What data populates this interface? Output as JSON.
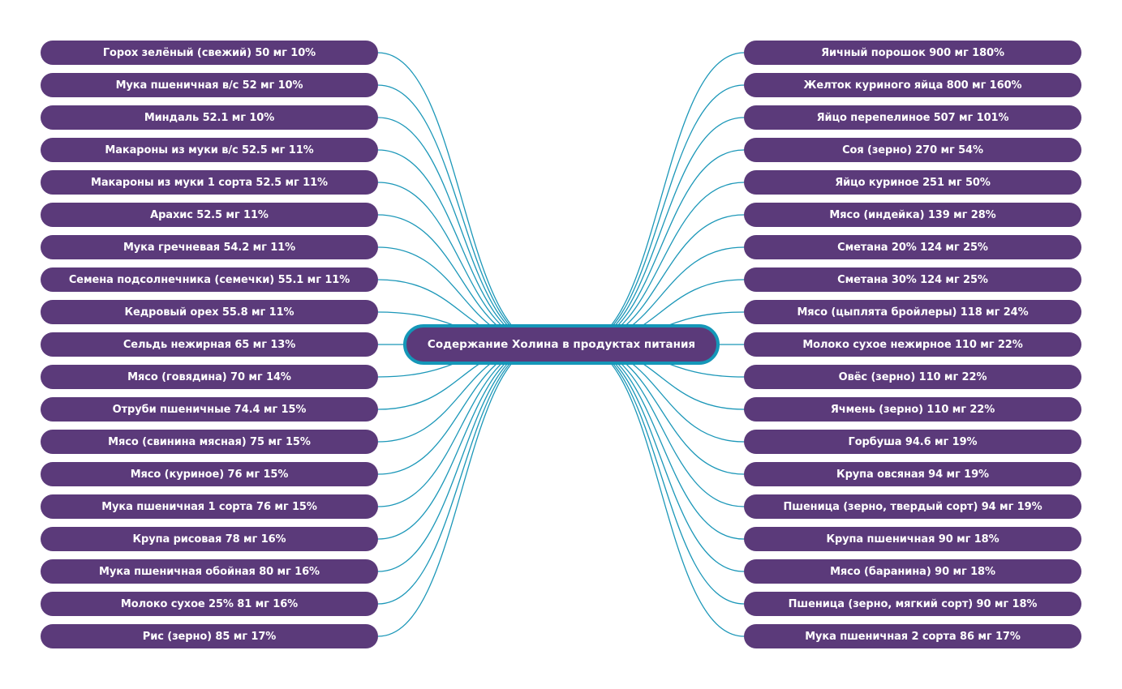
{
  "colors": {
    "node_bg": "#5b3a7a",
    "node_text": "#ffffff",
    "link": "#1b97b8",
    "center_border": "#1497b8"
  },
  "center": {
    "label": "Содержание Холина в продуктах питания"
  },
  "left_items": [
    "Горох зелёный (свежий) 50 мг 10%",
    "Мука пшеничная в/с 52 мг 10%",
    "Миндаль 52.1 мг 10%",
    "Макароны из муки в/с 52.5 мг 11%",
    "Макароны из муки 1 сорта 52.5 мг 11%",
    "Арахис 52.5 мг 11%",
    "Мука гречневая 54.2 мг 11%",
    "Семена подсолнечника (семечки) 55.1 мг 11%",
    "Кедровый орех 55.8 мг 11%",
    "Сельдь нежирная 65 мг 13%",
    "Мясо (говядина) 70 мг 14%",
    "Отруби пшеничные 74.4 мг 15%",
    "Мясо (свинина мясная) 75 мг 15%",
    "Мясо (куриное) 76 мг 15%",
    "Мука пшеничная 1 сорта 76 мг 15%",
    "Крупа рисовая 78 мг 16%",
    "Мука пшеничная обойная 80 мг 16%",
    "Молоко сухое 25% 81 мг 16%",
    "Рис (зерно) 85 мг 17%"
  ],
  "right_items": [
    "Яичный порошок 900 мг 180%",
    "Желток куриного яйца 800 мг 160%",
    "Яйцо перепелиное 507 мг 101%",
    "Соя (зерно) 270 мг 54%",
    "Яйцо куриное 251 мг 50%",
    "Мясо (индейка) 139 мг 28%",
    "Сметана 20% 124 мг 25%",
    "Сметана 30% 124 мг 25%",
    "Мясо (цыплята бройлеры) 118 мг 24%",
    "Молоко сухое нежирное 110 мг 22%",
    "Овёс (зерно) 110 мг 22%",
    "Ячмень (зерно) 110 мг 22%",
    "Горбуша 94.6 мг 19%",
    "Крупа овсяная 94 мг 19%",
    "Пшеница (зерно, твердый сорт) 94 мг 19%",
    "Крупа пшеничная 90 мг 18%",
    "Мясо (баранина) 90 мг 18%",
    "Пшеница (зерно, мягкий сорт) 90 мг 18%",
    "Мука пшеничная 2 сорта 86 мг 17%"
  ]
}
